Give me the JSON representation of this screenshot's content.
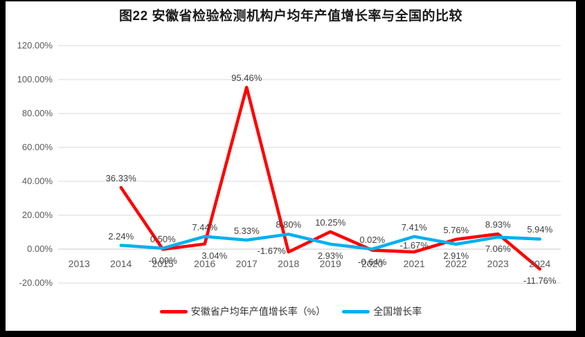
{
  "title": "图22 安徽省检验检测机构户均年产值增长率与全国的比较",
  "chart_data": {
    "type": "line",
    "title": "图22 安徽省检验检测机构户均年产值增长率与全国的比较",
    "xlabel": "",
    "ylabel": "",
    "categories": [
      "2013",
      "2014",
      "2015",
      "2016",
      "2017",
      "2018",
      "2019",
      "2020",
      "2021",
      "2022",
      "2023",
      "2024"
    ],
    "series": [
      {
        "name": "安徽省户均年产值增长率（%）",
        "color": "#FF0000",
        "values": [
          null,
          36.33,
          -0.09,
          3.04,
          95.46,
          -1.67,
          10.25,
          -0.64,
          -1.67,
          5.76,
          8.93,
          -11.76
        ],
        "label_positions": [
          null,
          "above",
          "below",
          "below-right",
          "above",
          "left",
          "above",
          "below",
          "above-near",
          "above",
          "above",
          "below"
        ]
      },
      {
        "name": "全国增长率",
        "color": "#00B0F0",
        "values": [
          null,
          2.24,
          0.5,
          7.44,
          5.33,
          8.8,
          2.93,
          0.02,
          7.41,
          2.91,
          7.06,
          5.94
        ],
        "label_positions": [
          null,
          "above",
          "above",
          "above",
          "above",
          "above",
          "below",
          "above",
          "above",
          "below",
          "below",
          "above"
        ]
      }
    ],
    "yticks": [
      120,
      100,
      80,
      60,
      40,
      20,
      0,
      -20
    ],
    "ytick_labels": [
      "120.00%",
      "100.00%",
      "80.00%",
      "60.00%",
      "40.00%",
      "20.00%",
      "0.00%",
      "-20.00%"
    ],
    "ylim": [
      -20,
      120
    ],
    "label_format": "0.00%",
    "grid": true,
    "legend_position": "bottom",
    "colors": {
      "grid": "#D9D9D9",
      "zero_line": "#C9C9C9",
      "axis_text": "#595959",
      "data_label": "#3F3F3F",
      "title_text": "#1A1A1A"
    }
  }
}
